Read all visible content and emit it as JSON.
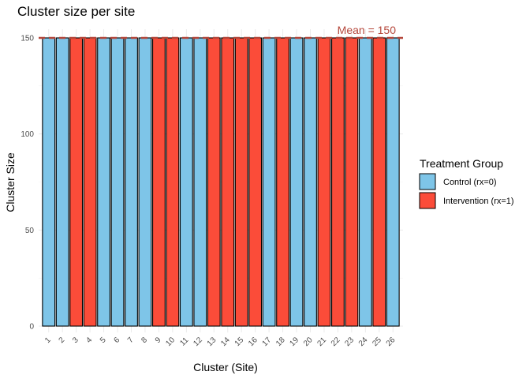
{
  "chart_data": {
    "type": "bar",
    "title": "Cluster size per site",
    "xlabel": "Cluster (Site)",
    "ylabel": "Cluster Size",
    "ylim": [
      0,
      150
    ],
    "yticks": [
      0,
      50,
      100,
      150
    ],
    "grid": true,
    "categories": [
      "1",
      "2",
      "3",
      "4",
      "5",
      "6",
      "7",
      "8",
      "9",
      "10",
      "11",
      "12",
      "13",
      "14",
      "15",
      "16",
      "17",
      "18",
      "19",
      "20",
      "21",
      "22",
      "23",
      "24",
      "25",
      "26"
    ],
    "values": [
      150,
      150,
      150,
      150,
      150,
      150,
      150,
      150,
      150,
      150,
      150,
      150,
      150,
      150,
      150,
      150,
      150,
      150,
      150,
      150,
      150,
      150,
      150,
      150,
      150,
      150
    ],
    "groups": [
      0,
      0,
      1,
      1,
      0,
      0,
      0,
      0,
      1,
      1,
      0,
      0,
      1,
      1,
      1,
      1,
      0,
      1,
      0,
      0,
      1,
      1,
      1,
      0,
      1,
      0
    ],
    "mean_line": {
      "value": 150,
      "label": "Mean = 150",
      "color": "#b5473b"
    },
    "legend": {
      "title": "Treatment Group",
      "position": "right",
      "entries": [
        {
          "label": "Control (rx=0)",
          "color": "#7ec5e8"
        },
        {
          "label": "Intervention (rx=1)",
          "color": "#fb4c39"
        }
      ]
    }
  }
}
